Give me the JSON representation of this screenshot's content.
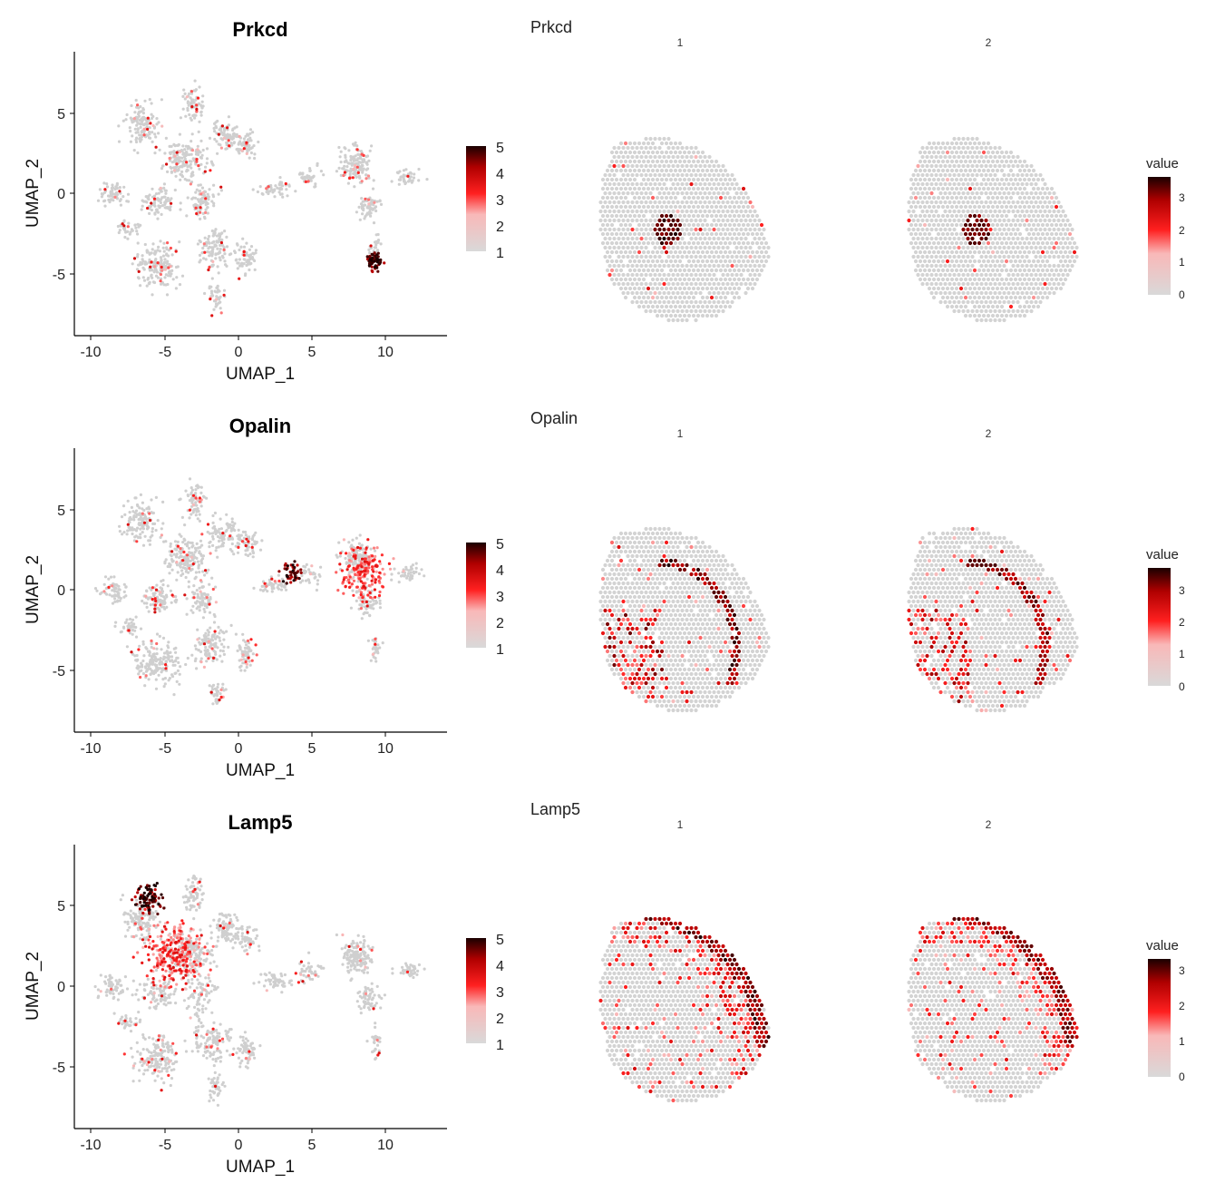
{
  "chart_data": [
    {
      "type": "scatter",
      "kind": "umap-feature-plot",
      "title": "Prkcd",
      "xlabel": "UMAP_1",
      "ylabel": "UMAP_2",
      "xticks": [
        "-10",
        "-5",
        "0",
        "5",
        "10"
      ],
      "yticks": [
        "5",
        "0",
        "-5"
      ],
      "xlim": [
        -11,
        14
      ],
      "ylim": [
        -9,
        9
      ],
      "legend": {
        "ticks": [
          "5",
          "4",
          "3",
          "2",
          "1"
        ],
        "range": [
          1,
          5
        ]
      },
      "hotspots": [
        {
          "label": "high cluster",
          "x": 9.2,
          "y": -4.2,
          "spread": 0.6,
          "count": 60,
          "value": 4.5
        }
      ],
      "spatial": {
        "title": "Prkcd",
        "facets": [
          "1",
          "2"
        ],
        "legend_title": "value",
        "legend_ticks": [
          "3",
          "2",
          "1",
          "0"
        ],
        "pattern": "central thalamic patch of high expression"
      }
    },
    {
      "type": "scatter",
      "kind": "umap-feature-plot",
      "title": "Opalin",
      "xlabel": "UMAP_1",
      "ylabel": "UMAP_2",
      "xticks": [
        "-10",
        "-5",
        "0",
        "5",
        "10"
      ],
      "yticks": [
        "5",
        "0",
        "-5"
      ],
      "xlim": [
        -11,
        14
      ],
      "ylim": [
        -9,
        9
      ],
      "legend": {
        "ticks": [
          "5",
          "4",
          "3",
          "2",
          "1"
        ],
        "range": [
          1,
          5
        ]
      },
      "hotspots": [
        {
          "label": "high cluster",
          "x": 3.5,
          "y": 1.0,
          "spread": 0.7,
          "count": 45,
          "value": 4.5
        },
        {
          "label": "red cluster",
          "x": 8.5,
          "y": 1.0,
          "spread": 1.6,
          "count": 180,
          "value": 3.0
        }
      ],
      "spatial": {
        "title": "Opalin",
        "facets": [
          "1",
          "2"
        ],
        "legend_title": "value",
        "legend_ticks": [
          "3",
          "2",
          "1",
          "0"
        ],
        "pattern": "white-matter arc and striatal scatter"
      }
    },
    {
      "type": "scatter",
      "kind": "umap-feature-plot",
      "title": "Lamp5",
      "xlabel": "UMAP_1",
      "ylabel": "UMAP_2",
      "xticks": [
        "-10",
        "-5",
        "0",
        "5",
        "10"
      ],
      "yticks": [
        "5",
        "0",
        "-5"
      ],
      "xlim": [
        -11,
        14
      ],
      "ylim": [
        -9,
        9
      ],
      "legend": {
        "ticks": [
          "5",
          "4",
          "3",
          "2",
          "1"
        ],
        "range": [
          1,
          5
        ]
      },
      "hotspots": [
        {
          "label": "high cluster",
          "x": -6.0,
          "y": 5.5,
          "spread": 0.9,
          "count": 90,
          "value": 4.6
        },
        {
          "label": "red cluster",
          "x": -4.5,
          "y": 2.0,
          "spread": 2.0,
          "count": 260,
          "value": 3.0
        }
      ],
      "spatial": {
        "title": "Lamp5",
        "facets": [
          "1",
          "2"
        ],
        "legend_title": "value",
        "legend_ticks": [
          "3",
          "2",
          "1",
          "0"
        ],
        "pattern": "outer cortical layer band"
      }
    }
  ],
  "colors": {
    "low": "#d9d9d9",
    "mid": "#ff1a1a",
    "high": "#1a0000",
    "background_spot": "#d3d3d3"
  }
}
